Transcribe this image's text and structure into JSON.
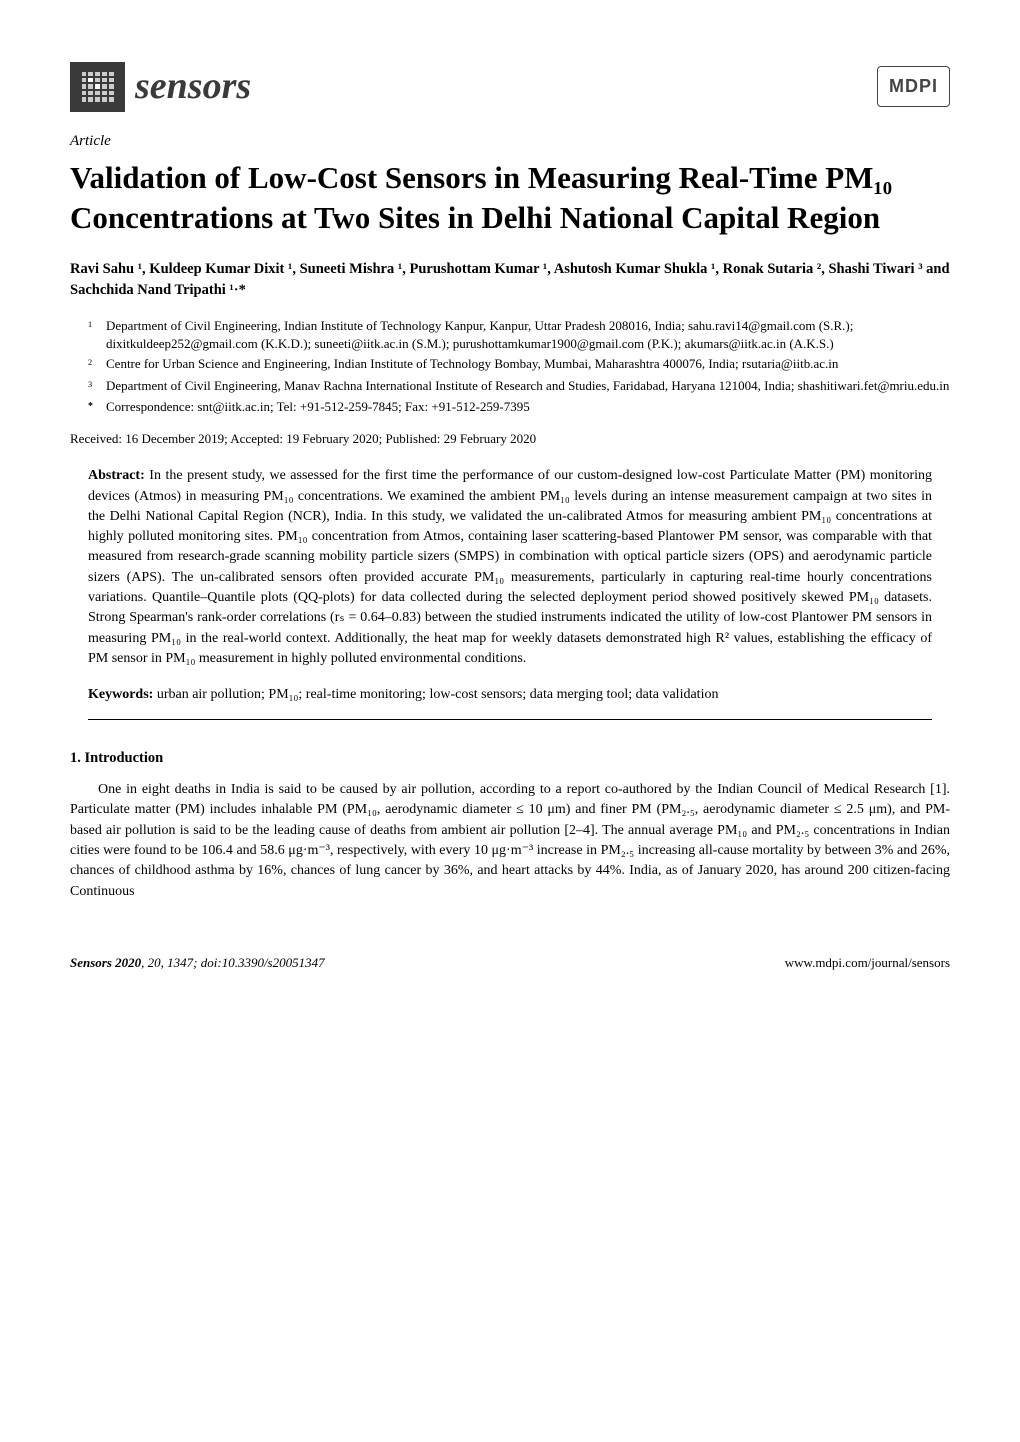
{
  "journal": {
    "name": "sensors",
    "publisher": "MDPI"
  },
  "article_type": "Article",
  "title": "Validation of Low-Cost Sensors in Measuring Real-Time PM₁₀ Concentrations at Two Sites in Delhi National Capital Region",
  "authors_line": "Ravi Sahu ¹, Kuldeep Kumar Dixit ¹, Suneeti Mishra ¹, Purushottam Kumar ¹, Ashutosh Kumar Shukla ¹, Ronak Sutaria ², Shashi Tiwari ³ and Sachchida Nand Tripathi ¹·*",
  "affiliations": [
    {
      "marker": "1",
      "text": "Department of Civil Engineering, Indian Institute of Technology Kanpur, Kanpur, Uttar Pradesh 208016, India; sahu.ravi14@gmail.com (S.R.); dixitkuldeep252@gmail.com (K.K.D.); suneeti@iitk.ac.in (S.M.); purushottamkumar1900@gmail.com (P.K.); akumars@iitk.ac.in (A.K.S.)"
    },
    {
      "marker": "2",
      "text": "Centre for Urban Science and Engineering, Indian Institute of Technology Bombay, Mumbai, Maharashtra 400076, India; rsutaria@iitb.ac.in"
    },
    {
      "marker": "3",
      "text": "Department of Civil Engineering, Manav Rachna International Institute of Research and Studies, Faridabad, Haryana 121004, India; shashitiwari.fet@mriu.edu.in"
    },
    {
      "marker": "*",
      "text": "Correspondence: snt@iitk.ac.in; Tel: +91-512-259-7845; Fax: +91-512-259-7395"
    }
  ],
  "dates": "Received: 16 December 2019; Accepted: 19 February 2020; Published: 29 February 2020",
  "abstract_label": "Abstract:",
  "abstract_text": " In the present study, we assessed for the first time the performance of our custom-designed low-cost Particulate Matter (PM) monitoring devices (Atmos) in measuring PM₁₀ concentrations. We examined the ambient PM₁₀ levels during an intense measurement campaign at two sites in the Delhi National Capital Region (NCR), India. In this study, we validated the un-calibrated Atmos for measuring ambient PM₁₀ concentrations at highly polluted monitoring sites. PM₁₀ concentration from Atmos, containing laser scattering-based Plantower PM sensor, was comparable with that measured from research-grade scanning mobility particle sizers (SMPS) in combination with optical particle sizers (OPS) and aerodynamic particle sizers (APS). The un-calibrated sensors often provided accurate PM₁₀ measurements, particularly in capturing real-time hourly concentrations variations. Quantile–Quantile plots (QQ-plots) for data collected during the selected deployment period showed positively skewed PM₁₀ datasets. Strong Spearman's rank-order correlations (rₛ = 0.64–0.83) between the studied instruments indicated the utility of low-cost Plantower PM sensors in measuring PM₁₀ in the real-world context. Additionally, the heat map for weekly datasets demonstrated high R² values, establishing the efficacy of PM sensor in PM₁₀ measurement in highly polluted environmental conditions.",
  "keywords_label": "Keywords:",
  "keywords_text": " urban air pollution; PM₁₀; real-time monitoring; low-cost sensors; data merging tool; data validation",
  "section_1_heading": "1. Introduction",
  "section_1_body": "One in eight deaths in India is said to be caused by air pollution, according to a report co-authored by the Indian Council of Medical Research [1]. Particulate matter (PM) includes inhalable PM (PM₁₀, aerodynamic diameter ≤ 10 μm) and finer PM (PM₂.₅, aerodynamic diameter ≤ 2.5 μm), and PM-based air pollution is said to be the leading cause of deaths from ambient air pollution [2–4]. The annual average PM₁₀ and PM₂.₅ concentrations in Indian cities were found to be 106.4 and 58.6 μg·m⁻³, respectively, with every 10 μg·m⁻³ increase in PM₂.₅ increasing all-cause mortality by between 3% and 26%, chances of childhood asthma by 16%, chances of lung cancer by 36%, and heart attacks by 44%. India, as of January 2020, has around 200 citizen-facing Continuous",
  "footer": {
    "left": "Sensors 2020, 20, 1347; doi:10.3390/s20051347",
    "right": "www.mdpi.com/journal/sensors"
  },
  "colors": {
    "text": "#000000",
    "background": "#ffffff",
    "logo_dark": "#3a3a3a",
    "logo_light": "#cccccc",
    "mdpi_border": "#444444"
  },
  "typography": {
    "title_fontsize": 31,
    "body_fontsize": 14,
    "authors_fontsize": 14.5,
    "affil_fontsize": 13,
    "footer_fontsize": 13,
    "font_family": "Palatino Linotype"
  }
}
